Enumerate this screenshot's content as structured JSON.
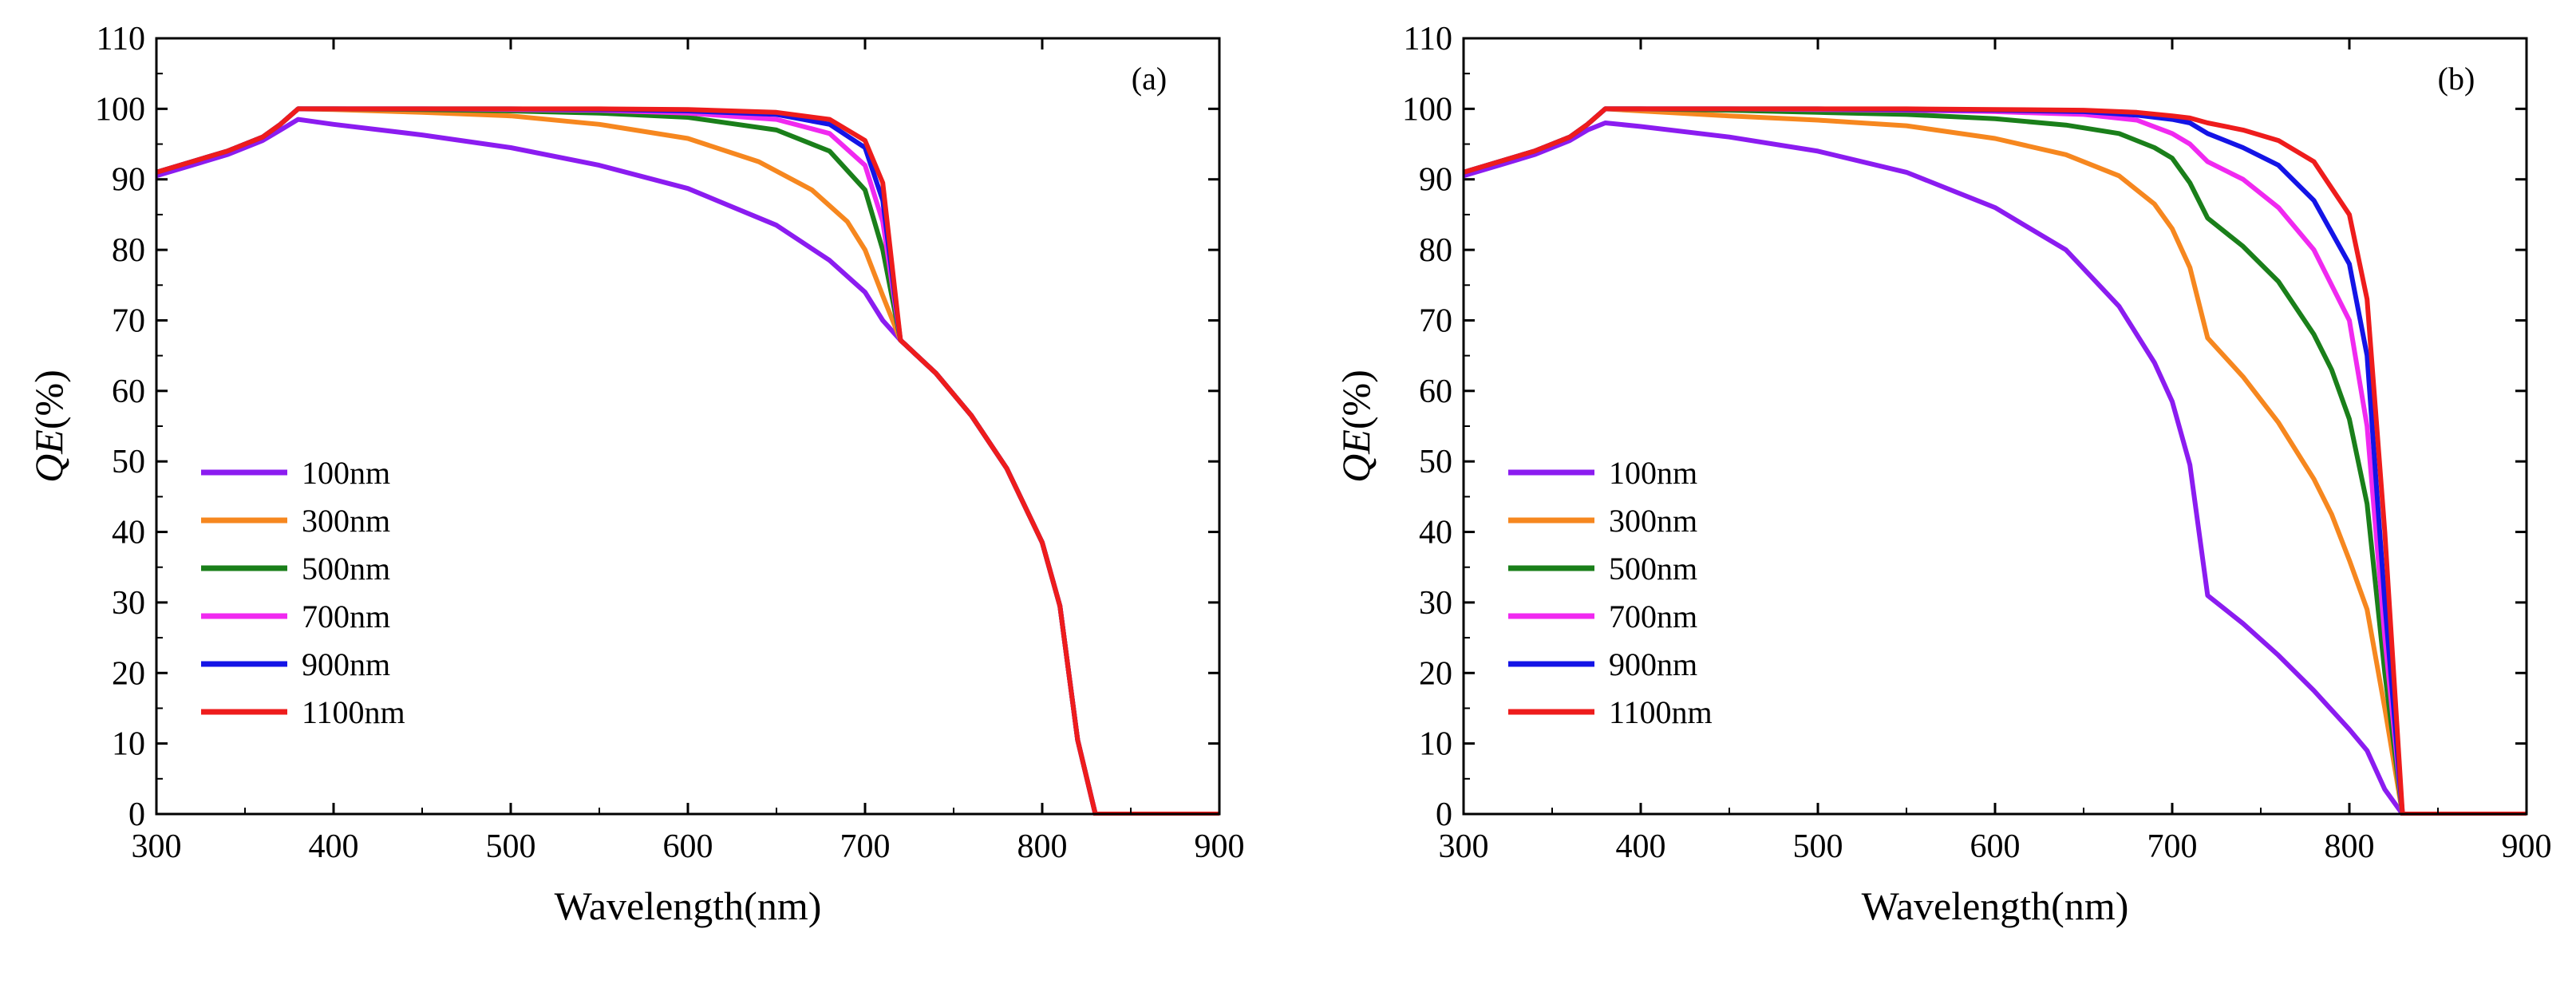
{
  "chart_data": [
    {
      "type": "line",
      "panel_label": "(a)",
      "xlabel": "Wavelength(nm)",
      "ylabel_italic": "QE",
      "ylabel_rest": "(%)",
      "xlim": [
        300,
        900
      ],
      "ylim": [
        0,
        110
      ],
      "xticks": [
        300,
        400,
        500,
        600,
        700,
        800,
        900
      ],
      "yticks": [
        0,
        10,
        20,
        30,
        40,
        50,
        60,
        70,
        80,
        90,
        100,
        110
      ],
      "grid": false,
      "legend_position": "lower-left",
      "series": [
        {
          "name": "100nm",
          "color": "#8B1CF0",
          "x": [
            300,
            320,
            340,
            360,
            370,
            380,
            400,
            450,
            500,
            550,
            600,
            650,
            680,
            700,
            710,
            720,
            740,
            760,
            780,
            800,
            810,
            820,
            830,
            840,
            850,
            900
          ],
          "y": [
            90.5,
            92,
            93.5,
            95.5,
            97,
            98.5,
            97.8,
            96.3,
            94.5,
            92,
            88.7,
            83.5,
            78.5,
            74,
            70,
            67.2,
            62.5,
            56.5,
            49,
            38.5,
            29.5,
            10.5,
            0,
            0,
            0,
            0
          ]
        },
        {
          "name": "300nm",
          "color": "#F6871F",
          "x": [
            300,
            320,
            340,
            360,
            370,
            380,
            400,
            450,
            500,
            550,
            600,
            640,
            670,
            690,
            700,
            710,
            720,
            740,
            760,
            780,
            800,
            810,
            820,
            830,
            840,
            850,
            900
          ],
          "y": [
            91,
            92.5,
            94,
            96,
            97.8,
            100,
            99.9,
            99.5,
            99,
            97.8,
            95.8,
            92.5,
            88.5,
            84,
            80,
            73.5,
            67.2,
            62.5,
            56.5,
            49,
            38.5,
            29.5,
            10.5,
            0,
            0,
            0,
            0
          ]
        },
        {
          "name": "500nm",
          "color": "#1A7F1A",
          "x": [
            300,
            320,
            340,
            360,
            370,
            380,
            400,
            450,
            500,
            550,
            600,
            650,
            680,
            700,
            710,
            720,
            740,
            760,
            780,
            800,
            810,
            820,
            830,
            840,
            850,
            900
          ],
          "y": [
            91,
            92.5,
            94,
            96,
            97.8,
            100,
            100,
            99.9,
            99.7,
            99.4,
            98.8,
            97,
            94,
            88.5,
            80,
            67.2,
            62.5,
            56.5,
            49,
            38.5,
            29.5,
            10.5,
            0,
            0,
            0,
            0
          ]
        },
        {
          "name": "700nm",
          "color": "#F029F0",
          "x": [
            300,
            320,
            340,
            360,
            370,
            380,
            400,
            450,
            500,
            550,
            600,
            650,
            680,
            700,
            710,
            720,
            740,
            760,
            780,
            800,
            810,
            820,
            830,
            840,
            850,
            900
          ],
          "y": [
            91,
            92.5,
            94,
            96,
            97.8,
            100,
            100,
            100,
            99.9,
            99.8,
            99.4,
            98.5,
            96.5,
            92,
            84,
            67.2,
            62.5,
            56.5,
            49,
            38.5,
            29.5,
            10.5,
            0,
            0,
            0,
            0
          ]
        },
        {
          "name": "900nm",
          "color": "#1414E6",
          "x": [
            300,
            320,
            340,
            360,
            370,
            380,
            400,
            450,
            500,
            550,
            600,
            650,
            680,
            700,
            710,
            720,
            740,
            760,
            780,
            800,
            810,
            820,
            830,
            840,
            850,
            900
          ],
          "y": [
            91,
            92.5,
            94,
            96,
            97.8,
            100,
            100,
            100,
            100,
            99.9,
            99.7,
            99.2,
            97.8,
            94.5,
            87,
            67.2,
            62.5,
            56.5,
            49,
            38.5,
            29.5,
            10.5,
            0,
            0,
            0,
            0
          ]
        },
        {
          "name": "1100nm",
          "color": "#EE1C1C",
          "x": [
            300,
            320,
            340,
            360,
            370,
            380,
            400,
            450,
            500,
            550,
            600,
            650,
            680,
            700,
            710,
            720,
            740,
            760,
            780,
            800,
            810,
            820,
            830,
            840,
            850,
            900
          ],
          "y": [
            91,
            92.5,
            94,
            96,
            97.8,
            100,
            100,
            100,
            100,
            100,
            99.9,
            99.5,
            98.5,
            95.5,
            89.5,
            67.2,
            62.5,
            56.5,
            49,
            38.5,
            29.5,
            10.5,
            0,
            0,
            0,
            0
          ]
        }
      ]
    },
    {
      "type": "line",
      "panel_label": "(b)",
      "xlabel": "Wavelength(nm)",
      "ylabel_italic": "QE",
      "ylabel_rest": "(%)",
      "xlim": [
        300,
        900
      ],
      "ylim": [
        0,
        110
      ],
      "xticks": [
        300,
        400,
        500,
        600,
        700,
        800,
        900
      ],
      "yticks": [
        0,
        10,
        20,
        30,
        40,
        50,
        60,
        70,
        80,
        90,
        100,
        110
      ],
      "grid": false,
      "legend_position": "lower-left",
      "series": [
        {
          "name": "100nm",
          "color": "#8B1CF0",
          "x": [
            300,
            320,
            340,
            360,
            370,
            380,
            400,
            450,
            500,
            550,
            600,
            640,
            670,
            690,
            700,
            710,
            720,
            740,
            760,
            780,
            800,
            810,
            820,
            830,
            840,
            850,
            900
          ],
          "y": [
            90.5,
            92,
            93.5,
            95.5,
            97,
            98,
            97.5,
            96,
            94,
            91,
            86,
            80,
            72,
            64,
            58.5,
            49.5,
            31,
            27,
            22.5,
            17.5,
            12,
            9,
            3.5,
            0,
            0,
            0,
            0
          ]
        },
        {
          "name": "300nm",
          "color": "#F6871F",
          "x": [
            300,
            320,
            340,
            360,
            370,
            380,
            400,
            450,
            500,
            550,
            600,
            640,
            670,
            690,
            700,
            710,
            720,
            740,
            760,
            780,
            790,
            800,
            810,
            820,
            830,
            840,
            850,
            900
          ],
          "y": [
            91,
            92.5,
            94,
            96,
            97.8,
            100,
            99.7,
            99,
            98.4,
            97.6,
            95.8,
            93.5,
            90.5,
            86.5,
            83,
            77.5,
            67.5,
            62,
            55.5,
            47.5,
            42.5,
            36,
            29,
            15,
            0,
            0,
            0,
            0
          ]
        },
        {
          "name": "500nm",
          "color": "#1A7F1A",
          "x": [
            300,
            320,
            340,
            360,
            370,
            380,
            400,
            450,
            500,
            550,
            600,
            640,
            670,
            690,
            700,
            710,
            720,
            740,
            760,
            780,
            790,
            800,
            810,
            820,
            830,
            840,
            850,
            900
          ],
          "y": [
            91,
            92.5,
            94,
            96,
            97.8,
            100,
            100,
            99.8,
            99.5,
            99.2,
            98.6,
            97.7,
            96.5,
            94.5,
            93,
            89.5,
            84.5,
            80.5,
            75.5,
            68,
            63,
            56,
            44,
            20,
            0,
            0,
            0,
            0
          ]
        },
        {
          "name": "700nm",
          "color": "#F029F0",
          "x": [
            300,
            320,
            340,
            360,
            370,
            380,
            400,
            450,
            500,
            550,
            600,
            650,
            680,
            700,
            710,
            720,
            740,
            760,
            780,
            800,
            810,
            820,
            830,
            840,
            850,
            900
          ],
          "y": [
            91,
            92.5,
            94,
            96,
            97.8,
            100,
            100,
            100,
            99.9,
            99.8,
            99.6,
            99.2,
            98.4,
            96.5,
            95,
            92.5,
            90,
            86,
            80,
            70,
            55,
            25,
            0,
            0,
            0,
            0
          ]
        },
        {
          "name": "900nm",
          "color": "#1414E6",
          "x": [
            300,
            320,
            340,
            360,
            370,
            380,
            400,
            450,
            500,
            550,
            600,
            650,
            680,
            700,
            710,
            720,
            740,
            760,
            780,
            800,
            810,
            820,
            830,
            840,
            850,
            900
          ],
          "y": [
            91,
            92.5,
            94,
            96,
            97.8,
            100,
            100,
            100,
            100,
            99.9,
            99.8,
            99.6,
            99.1,
            98.5,
            98,
            96.5,
            94.5,
            92,
            87,
            78,
            65,
            30,
            0,
            0,
            0,
            0
          ]
        },
        {
          "name": "1100nm",
          "color": "#EE1C1C",
          "x": [
            300,
            320,
            340,
            360,
            370,
            380,
            400,
            450,
            500,
            550,
            600,
            650,
            680,
            700,
            710,
            720,
            740,
            760,
            780,
            800,
            810,
            820,
            830,
            840,
            850,
            900
          ],
          "y": [
            91,
            92.5,
            94,
            96,
            97.8,
            100,
            100,
            100,
            100,
            100,
            99.9,
            99.8,
            99.5,
            99,
            98.7,
            98,
            97,
            95.5,
            92.5,
            85,
            73,
            40,
            0,
            0,
            0,
            0
          ]
        }
      ]
    }
  ]
}
